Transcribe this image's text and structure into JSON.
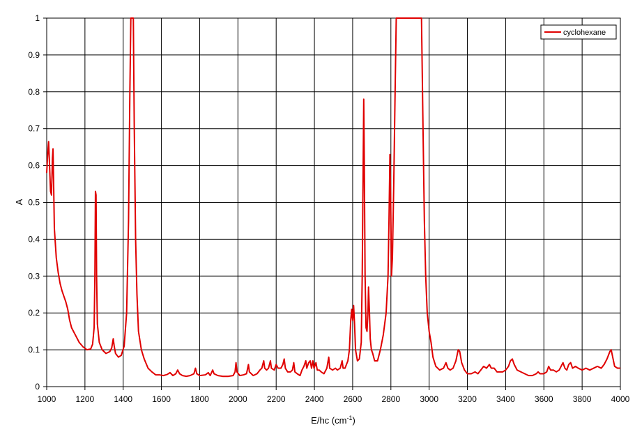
{
  "chart_data": {
    "type": "line",
    "title": "",
    "xlabel": "E/hc (cm",
    "xlabel_sup": "-1",
    "xlabel_suffix": ")",
    "ylabel": "A",
    "xlim": [
      1000,
      4000
    ],
    "ylim": [
      0,
      1
    ],
    "x_ticks": [
      "1000",
      "1200",
      "1400",
      "1600",
      "1800",
      "2000",
      "2200",
      "2400",
      "2600",
      "2800",
      "3000",
      "3200",
      "3400",
      "3600",
      "3800",
      "4000"
    ],
    "y_ticks": [
      "0",
      "0.1",
      "0.2",
      "0.3",
      "0.4",
      "0.5",
      "0.6",
      "0.7",
      "0.8",
      "0.9",
      "1"
    ],
    "grid": true,
    "legend_position": "top-right",
    "series": [
      {
        "name": "cyclohexane",
        "color": "#e00000",
        "points": [
          [
            1000,
            0.58
          ],
          [
            1005,
            0.63
          ],
          [
            1010,
            0.665
          ],
          [
            1015,
            0.6
          ],
          [
            1020,
            0.53
          ],
          [
            1025,
            0.52
          ],
          [
            1030,
            0.62
          ],
          [
            1033,
            0.645
          ],
          [
            1036,
            0.56
          ],
          [
            1040,
            0.43
          ],
          [
            1050,
            0.35
          ],
          [
            1060,
            0.31
          ],
          [
            1070,
            0.28
          ],
          [
            1080,
            0.26
          ],
          [
            1090,
            0.245
          ],
          [
            1100,
            0.23
          ],
          [
            1110,
            0.21
          ],
          [
            1120,
            0.18
          ],
          [
            1130,
            0.16
          ],
          [
            1150,
            0.14
          ],
          [
            1170,
            0.12
          ],
          [
            1190,
            0.108
          ],
          [
            1210,
            0.1
          ],
          [
            1230,
            0.102
          ],
          [
            1240,
            0.115
          ],
          [
            1248,
            0.16
          ],
          [
            1252,
            0.3
          ],
          [
            1255,
            0.53
          ],
          [
            1258,
            0.52
          ],
          [
            1261,
            0.3
          ],
          [
            1265,
            0.17
          ],
          [
            1275,
            0.12
          ],
          [
            1290,
            0.1
          ],
          [
            1310,
            0.09
          ],
          [
            1330,
            0.095
          ],
          [
            1340,
            0.105
          ],
          [
            1348,
            0.13
          ],
          [
            1353,
            0.11
          ],
          [
            1360,
            0.09
          ],
          [
            1375,
            0.08
          ],
          [
            1390,
            0.085
          ],
          [
            1405,
            0.11
          ],
          [
            1418,
            0.2
          ],
          [
            1428,
            0.45
          ],
          [
            1435,
            0.8
          ],
          [
            1440,
            1.0
          ],
          [
            1453,
            1.0
          ],
          [
            1458,
            0.7
          ],
          [
            1465,
            0.4
          ],
          [
            1472,
            0.25
          ],
          [
            1480,
            0.15
          ],
          [
            1495,
            0.1
          ],
          [
            1510,
            0.075
          ],
          [
            1530,
            0.05
          ],
          [
            1550,
            0.04
          ],
          [
            1570,
            0.032
          ],
          [
            1590,
            0.032
          ],
          [
            1610,
            0.03
          ],
          [
            1630,
            0.033
          ],
          [
            1645,
            0.038
          ],
          [
            1660,
            0.03
          ],
          [
            1675,
            0.035
          ],
          [
            1685,
            0.045
          ],
          [
            1695,
            0.035
          ],
          [
            1710,
            0.03
          ],
          [
            1730,
            0.028
          ],
          [
            1750,
            0.03
          ],
          [
            1770,
            0.035
          ],
          [
            1778,
            0.05
          ],
          [
            1785,
            0.035
          ],
          [
            1800,
            0.03
          ],
          [
            1830,
            0.032
          ],
          [
            1845,
            0.038
          ],
          [
            1855,
            0.03
          ],
          [
            1868,
            0.045
          ],
          [
            1875,
            0.035
          ],
          [
            1895,
            0.03
          ],
          [
            1920,
            0.028
          ],
          [
            1950,
            0.028
          ],
          [
            1975,
            0.03
          ],
          [
            1985,
            0.04
          ],
          [
            1990,
            0.065
          ],
          [
            1995,
            0.04
          ],
          [
            2010,
            0.03
          ],
          [
            2030,
            0.032
          ],
          [
            2045,
            0.035
          ],
          [
            2055,
            0.06
          ],
          [
            2060,
            0.04
          ],
          [
            2080,
            0.03
          ],
          [
            2100,
            0.035
          ],
          [
            2115,
            0.045
          ],
          [
            2125,
            0.05
          ],
          [
            2135,
            0.07
          ],
          [
            2140,
            0.05
          ],
          [
            2150,
            0.045
          ],
          [
            2160,
            0.05
          ],
          [
            2170,
            0.07
          ],
          [
            2175,
            0.05
          ],
          [
            2190,
            0.045
          ],
          [
            2200,
            0.06
          ],
          [
            2210,
            0.05
          ],
          [
            2225,
            0.05
          ],
          [
            2235,
            0.06
          ],
          [
            2242,
            0.075
          ],
          [
            2248,
            0.05
          ],
          [
            2260,
            0.04
          ],
          [
            2275,
            0.04
          ],
          [
            2285,
            0.045
          ],
          [
            2292,
            0.065
          ],
          [
            2298,
            0.04
          ],
          [
            2310,
            0.035
          ],
          [
            2325,
            0.03
          ],
          [
            2335,
            0.045
          ],
          [
            2345,
            0.055
          ],
          [
            2355,
            0.07
          ],
          [
            2360,
            0.05
          ],
          [
            2370,
            0.065
          ],
          [
            2378,
            0.07
          ],
          [
            2385,
            0.05
          ],
          [
            2392,
            0.07
          ],
          [
            2398,
            0.05
          ],
          [
            2408,
            0.065
          ],
          [
            2415,
            0.045
          ],
          [
            2425,
            0.045
          ],
          [
            2435,
            0.04
          ],
          [
            2450,
            0.035
          ],
          [
            2465,
            0.05
          ],
          [
            2475,
            0.08
          ],
          [
            2480,
            0.05
          ],
          [
            2495,
            0.045
          ],
          [
            2510,
            0.05
          ],
          [
            2520,
            0.045
          ],
          [
            2535,
            0.05
          ],
          [
            2545,
            0.07
          ],
          [
            2550,
            0.05
          ],
          [
            2560,
            0.05
          ],
          [
            2575,
            0.07
          ],
          [
            2583,
            0.1
          ],
          [
            2590,
            0.18
          ],
          [
            2595,
            0.21
          ],
          [
            2600,
            0.18
          ],
          [
            2605,
            0.22
          ],
          [
            2610,
            0.17
          ],
          [
            2615,
            0.1
          ],
          [
            2625,
            0.07
          ],
          [
            2635,
            0.075
          ],
          [
            2645,
            0.12
          ],
          [
            2650,
            0.3
          ],
          [
            2655,
            0.6
          ],
          [
            2658,
            0.78
          ],
          [
            2661,
            0.6
          ],
          [
            2665,
            0.3
          ],
          [
            2670,
            0.16
          ],
          [
            2675,
            0.15
          ],
          [
            2680,
            0.2
          ],
          [
            2683,
            0.27
          ],
          [
            2688,
            0.2
          ],
          [
            2692,
            0.13
          ],
          [
            2698,
            0.1
          ],
          [
            2705,
            0.09
          ],
          [
            2715,
            0.07
          ],
          [
            2730,
            0.07
          ],
          [
            2745,
            0.1
          ],
          [
            2760,
            0.14
          ],
          [
            2775,
            0.2
          ],
          [
            2785,
            0.3
          ],
          [
            2790,
            0.45
          ],
          [
            2795,
            0.63
          ],
          [
            2799,
            0.5
          ],
          [
            2803,
            0.3
          ],
          [
            2808,
            0.35
          ],
          [
            2815,
            0.55
          ],
          [
            2822,
            0.8
          ],
          [
            2828,
            1.0
          ],
          [
            2960,
            1.0
          ],
          [
            2968,
            0.7
          ],
          [
            2975,
            0.45
          ],
          [
            2982,
            0.3
          ],
          [
            2990,
            0.2
          ],
          [
            3000,
            0.15
          ],
          [
            3010,
            0.12
          ],
          [
            3020,
            0.08
          ],
          [
            3035,
            0.055
          ],
          [
            3055,
            0.045
          ],
          [
            3075,
            0.05
          ],
          [
            3088,
            0.065
          ],
          [
            3098,
            0.05
          ],
          [
            3110,
            0.045
          ],
          [
            3125,
            0.05
          ],
          [
            3140,
            0.07
          ],
          [
            3152,
            0.1
          ],
          [
            3160,
            0.095
          ],
          [
            3170,
            0.065
          ],
          [
            3185,
            0.045
          ],
          [
            3200,
            0.035
          ],
          [
            3220,
            0.035
          ],
          [
            3240,
            0.04
          ],
          [
            3255,
            0.035
          ],
          [
            3270,
            0.045
          ],
          [
            3285,
            0.055
          ],
          [
            3300,
            0.05
          ],
          [
            3315,
            0.06
          ],
          [
            3325,
            0.05
          ],
          [
            3340,
            0.05
          ],
          [
            3355,
            0.04
          ],
          [
            3370,
            0.04
          ],
          [
            3385,
            0.04
          ],
          [
            3400,
            0.045
          ],
          [
            3415,
            0.055
          ],
          [
            3425,
            0.07
          ],
          [
            3435,
            0.075
          ],
          [
            3445,
            0.06
          ],
          [
            3460,
            0.045
          ],
          [
            3480,
            0.04
          ],
          [
            3500,
            0.035
          ],
          [
            3520,
            0.03
          ],
          [
            3540,
            0.03
          ],
          [
            3560,
            0.035
          ],
          [
            3570,
            0.04
          ],
          [
            3580,
            0.035
          ],
          [
            3600,
            0.035
          ],
          [
            3615,
            0.04
          ],
          [
            3625,
            0.055
          ],
          [
            3635,
            0.045
          ],
          [
            3650,
            0.045
          ],
          [
            3665,
            0.04
          ],
          [
            3680,
            0.045
          ],
          [
            3690,
            0.055
          ],
          [
            3700,
            0.065
          ],
          [
            3710,
            0.05
          ],
          [
            3720,
            0.045
          ],
          [
            3730,
            0.06
          ],
          [
            3740,
            0.065
          ],
          [
            3750,
            0.05
          ],
          [
            3765,
            0.055
          ],
          [
            3780,
            0.05
          ],
          [
            3800,
            0.045
          ],
          [
            3820,
            0.05
          ],
          [
            3840,
            0.045
          ],
          [
            3860,
            0.05
          ],
          [
            3880,
            0.055
          ],
          [
            3900,
            0.05
          ],
          [
            3915,
            0.06
          ],
          [
            3930,
            0.075
          ],
          [
            3945,
            0.095
          ],
          [
            3952,
            0.1
          ],
          [
            3960,
            0.08
          ],
          [
            3970,
            0.055
          ],
          [
            3985,
            0.05
          ],
          [
            4000,
            0.05
          ]
        ]
      }
    ]
  }
}
